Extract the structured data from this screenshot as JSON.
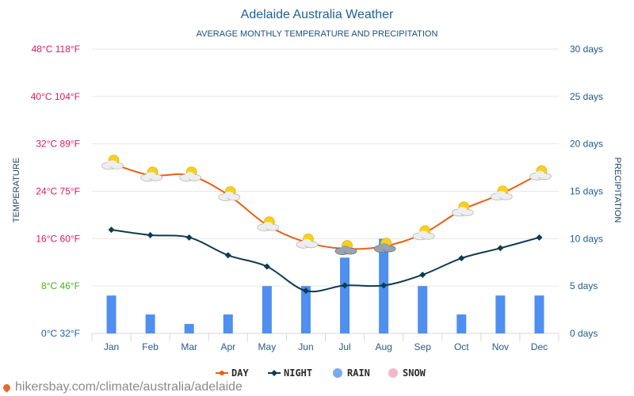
{
  "colors": {
    "title": "#1f5f97",
    "subtitle": "#1b4f7a",
    "grid": "#e6e6e6",
    "day": "#ef5d12",
    "night": "#0f3b52",
    "rain": "#4f8ff0",
    "rain_legend": "#79a9ef",
    "snow": "#f4b8c8",
    "axis_right": "#215b85",
    "month_text": "#2a5a86",
    "footer": "#8a8a8a"
  },
  "chart_data": {
    "type": "line",
    "title": "Adelaide Australia Weather",
    "subtitle": "AVERAGE MONTHLY TEMPERATURE AND PRECIPITATION",
    "categories": [
      "Jan",
      "Feb",
      "Mar",
      "Apr",
      "May",
      "Jun",
      "Jul",
      "Aug",
      "Sep",
      "Oct",
      "Nov",
      "Dec"
    ],
    "series": [
      {
        "name": "DAY",
        "type": "line",
        "axis": "temperature",
        "values": [
          28.7,
          26.7,
          26.7,
          23.4,
          18.3,
          15.4,
          14.3,
          14.7,
          16.8,
          20.8,
          23.5,
          26.9
        ]
      },
      {
        "name": "NIGHT",
        "type": "line",
        "axis": "temperature",
        "values": [
          17.5,
          16.6,
          16.2,
          13.2,
          11.3,
          7.2,
          8.1,
          8.1,
          9.9,
          12.7,
          14.4,
          16.2
        ]
      },
      {
        "name": "RAIN",
        "type": "bar",
        "axis": "precipitation",
        "values": [
          4,
          2,
          1,
          2,
          5,
          5,
          8,
          10,
          5,
          2,
          4,
          4
        ]
      },
      {
        "name": "SNOW",
        "type": "bar",
        "axis": "precipitation",
        "values": [
          0,
          0,
          0,
          0,
          0,
          0,
          0,
          0,
          0,
          0,
          0,
          0
        ]
      }
    ],
    "weather_icons": [
      "sun-cloud",
      "sun-cloud",
      "sun-cloud",
      "sun-cloud",
      "sun-cloud",
      "sun-cloud",
      "sun-rain-cloud",
      "sun-rain-cloud",
      "sun-cloud",
      "sun-cloud",
      "sun-cloud",
      "sun-cloud"
    ],
    "ylabel_left": "TEMPERATURE",
    "ylabel_right": "PRECIPITATION",
    "ylim_left": [
      0,
      48
    ],
    "ylim_right": [
      0,
      30
    ],
    "left_ticks": [
      {
        "value": 0,
        "label": "0°C 32°F",
        "color": "#1a5fb4"
      },
      {
        "value": 8,
        "label": "8°C 46°F",
        "color": "#4caf1a"
      },
      {
        "value": 16,
        "label": "16°C 60°F",
        "color": "#d81b60"
      },
      {
        "value": 24,
        "label": "24°C 75°F",
        "color": "#d81b60"
      },
      {
        "value": 32,
        "label": "32°C 89°F",
        "color": "#d81b60"
      },
      {
        "value": 40,
        "label": "40°C 104°F",
        "color": "#d81b60"
      },
      {
        "value": 48,
        "label": "48°C 118°F",
        "color": "#d81b60"
      }
    ],
    "right_ticks": [
      {
        "value": 0,
        "label": "0 days"
      },
      {
        "value": 5,
        "label": "5 days"
      },
      {
        "value": 10,
        "label": "10 days"
      },
      {
        "value": 15,
        "label": "15 days"
      },
      {
        "value": 20,
        "label": "20 days"
      },
      {
        "value": 25,
        "label": "25 days"
      },
      {
        "value": 30,
        "label": "30 days"
      }
    ],
    "legend": {
      "placement": "bottom-center",
      "items": [
        {
          "name": "DAY",
          "icon": "line-dot-icon"
        },
        {
          "name": "NIGHT",
          "icon": "line-diamond-icon"
        },
        {
          "name": "RAIN",
          "icon": "circle-icon"
        },
        {
          "name": "SNOW",
          "icon": "circle-icon"
        }
      ]
    },
    "grid": true
  },
  "footer": {
    "text": "hikersbay.com/climate/australia/adelaide",
    "icon": "map-pin-icon"
  }
}
